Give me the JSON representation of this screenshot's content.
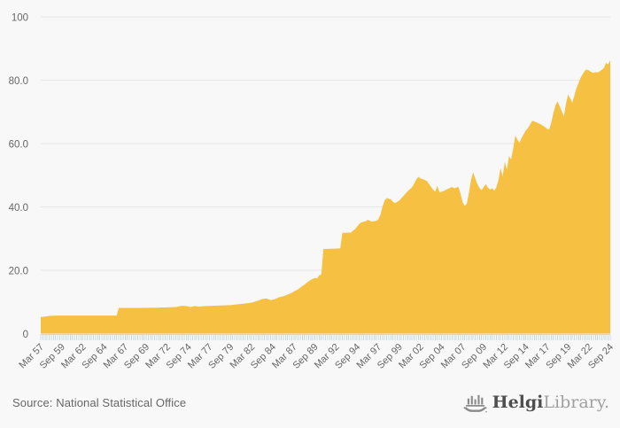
{
  "page": {
    "background_color": "#f8f8f8"
  },
  "chart_data": {
    "type": "area",
    "title": "",
    "legend": "none",
    "grid": "horizontal-only",
    "background_color": "#f8f8f8",
    "label_color": "#666666",
    "x_axis": {
      "frequency": "quarterly",
      "first_point": "Mar 57",
      "last_point": "Sep 24",
      "total_points": 271,
      "points_between_labels": 10,
      "label_rotation_deg": -45,
      "tick_color": "#ccd6eb",
      "tick_labels": [
        "Mar 57",
        "Sep 59",
        "Mar 62",
        "Sep 64",
        "Mar 67",
        "Sep 69",
        "Mar 72",
        "Sep 74",
        "Mar 77",
        "Sep 79",
        "Mar 82",
        "Sep 84",
        "Mar 87",
        "Sep 89",
        "Mar 92",
        "Sep 94",
        "Mar 97",
        "Sep 99",
        "Mar 02",
        "Sep 04",
        "Mar 07",
        "Sep 09",
        "Mar 12",
        "Sep 14",
        "Mar 17",
        "Sep 19",
        "Mar 22",
        "Sep 24"
      ]
    },
    "y_axis": {
      "min": 0,
      "max": 100,
      "tick_values": [
        0,
        20,
        40,
        60,
        80,
        100
      ],
      "tick_labels": [
        "0",
        "20.0",
        "40.0",
        "60.0",
        "80.0",
        "100"
      ],
      "gridline_color": "#e6e6e6"
    },
    "series": [
      {
        "name": "",
        "type": "area",
        "color": "#f6c143",
        "anchor_points_quarter_index_value": [
          [
            0,
            5.2
          ],
          [
            2,
            5.4
          ],
          [
            4,
            5.6
          ],
          [
            8,
            5.7
          ],
          [
            36,
            5.7
          ],
          [
            37,
            8.1
          ],
          [
            45,
            8.1
          ],
          [
            55,
            8.2
          ],
          [
            60,
            8.3
          ],
          [
            64,
            8.4
          ],
          [
            67,
            8.8
          ],
          [
            69,
            8.7
          ],
          [
            71,
            8.4
          ],
          [
            73,
            8.7
          ],
          [
            75,
            8.5
          ],
          [
            78,
            8.7
          ],
          [
            82,
            8.8
          ],
          [
            86,
            8.9
          ],
          [
            90,
            9.0
          ],
          [
            94,
            9.3
          ],
          [
            98,
            9.6
          ],
          [
            100,
            9.8
          ],
          [
            103,
            10.4
          ],
          [
            105,
            10.9
          ],
          [
            107,
            11.1
          ],
          [
            109,
            10.6
          ],
          [
            111,
            10.9
          ],
          [
            113,
            11.5
          ],
          [
            115,
            11.8
          ],
          [
            117,
            12.3
          ],
          [
            119,
            12.9
          ],
          [
            120,
            13.3
          ],
          [
            122,
            14.0
          ],
          [
            125,
            15.5
          ],
          [
            128,
            17.0
          ],
          [
            130,
            17.6
          ],
          [
            131,
            17.4
          ],
          [
            132,
            18.4
          ],
          [
            133,
            18.7
          ],
          [
            134,
            26.7
          ],
          [
            138,
            26.8
          ],
          [
            142,
            26.9
          ],
          [
            143,
            31.8
          ],
          [
            147,
            31.9
          ],
          [
            149,
            33.0
          ],
          [
            151,
            34.6
          ],
          [
            152,
            35.1
          ],
          [
            154,
            35.5
          ],
          [
            155,
            35.9
          ],
          [
            157,
            35.4
          ],
          [
            159,
            35.6
          ],
          [
            160,
            36.0
          ],
          [
            161,
            37.5
          ],
          [
            162,
            40.0
          ],
          [
            163,
            42.0
          ],
          [
            164,
            42.8
          ],
          [
            165,
            42.6
          ],
          [
            166,
            42.4
          ],
          [
            167,
            41.6
          ],
          [
            168,
            41.2
          ],
          [
            170,
            42.0
          ],
          [
            172,
            43.5
          ],
          [
            174,
            45.0
          ],
          [
            176,
            46.2
          ],
          [
            177,
            47.3
          ],
          [
            178,
            48.6
          ],
          [
            179,
            49.5
          ],
          [
            180,
            49.0
          ],
          [
            181,
            48.8
          ],
          [
            182,
            48.5
          ],
          [
            183,
            48.2
          ],
          [
            184,
            47.3
          ],
          [
            185,
            46.4
          ],
          [
            186,
            45.5
          ],
          [
            187,
            44.8
          ],
          [
            188,
            46.7
          ],
          [
            189,
            44.6
          ],
          [
            190,
            44.8
          ],
          [
            191,
            45.0
          ],
          [
            192,
            45.4
          ],
          [
            193,
            45.7
          ],
          [
            194,
            46.0
          ],
          [
            195,
            46.3
          ],
          [
            196,
            45.9
          ],
          [
            197,
            46.1
          ],
          [
            198,
            46.4
          ],
          [
            199,
            44.2
          ],
          [
            200,
            41.5
          ],
          [
            201,
            40.3
          ],
          [
            202,
            41.0
          ],
          [
            203,
            44.5
          ],
          [
            204,
            48.5
          ],
          [
            205,
            50.9
          ],
          [
            206,
            49.0
          ],
          [
            207,
            47.2
          ],
          [
            208,
            46.0
          ],
          [
            209,
            45.3
          ],
          [
            210,
            46.3
          ],
          [
            211,
            47.2
          ],
          [
            212,
            46.1
          ],
          [
            213,
            45.5
          ],
          [
            214,
            45.9
          ],
          [
            215,
            45.1
          ],
          [
            216,
            46.2
          ],
          [
            217,
            48.5
          ],
          [
            218,
            52.3
          ],
          [
            219,
            49.6
          ],
          [
            220,
            54.2
          ],
          [
            221,
            51.8
          ],
          [
            222,
            56.0
          ],
          [
            223,
            55.0
          ],
          [
            224,
            58.5
          ],
          [
            225,
            62.5
          ],
          [
            226,
            61.2
          ],
          [
            227,
            60.3
          ],
          [
            228,
            61.8
          ],
          [
            229,
            63.0
          ],
          [
            230,
            64.2
          ],
          [
            231,
            64.9
          ],
          [
            232,
            66.0
          ],
          [
            233,
            67.2
          ],
          [
            234,
            67.0
          ],
          [
            235,
            66.7
          ],
          [
            236,
            66.4
          ],
          [
            237,
            66.1
          ],
          [
            238,
            65.7
          ],
          [
            239,
            65.2
          ],
          [
            240,
            64.7
          ],
          [
            241,
            64.4
          ],
          [
            242,
            66.5
          ],
          [
            243,
            69.5
          ],
          [
            244,
            72.0
          ],
          [
            245,
            73.3
          ],
          [
            246,
            71.8
          ],
          [
            247,
            70.2
          ],
          [
            248,
            68.6
          ],
          [
            249,
            72.5
          ],
          [
            250,
            75.5
          ],
          [
            251,
            74.3
          ],
          [
            252,
            72.9
          ],
          [
            253,
            75.2
          ],
          [
            254,
            77.5
          ],
          [
            255,
            79.2
          ],
          [
            256,
            80.8
          ],
          [
            257,
            82.0
          ],
          [
            258,
            83.0
          ],
          [
            259,
            83.4
          ],
          [
            260,
            83.0
          ],
          [
            261,
            82.6
          ],
          [
            262,
            82.3
          ],
          [
            263,
            82.6
          ],
          [
            264,
            82.4
          ],
          [
            265,
            82.8
          ],
          [
            266,
            83.3
          ],
          [
            267,
            83.8
          ],
          [
            268,
            85.5
          ],
          [
            269,
            85.0
          ],
          [
            270,
            86.3
          ]
        ]
      }
    ]
  },
  "footer": {
    "source": "Source: National Statistical Office",
    "logo": {
      "primary": "Helgi",
      "secondary": "Library."
    }
  }
}
